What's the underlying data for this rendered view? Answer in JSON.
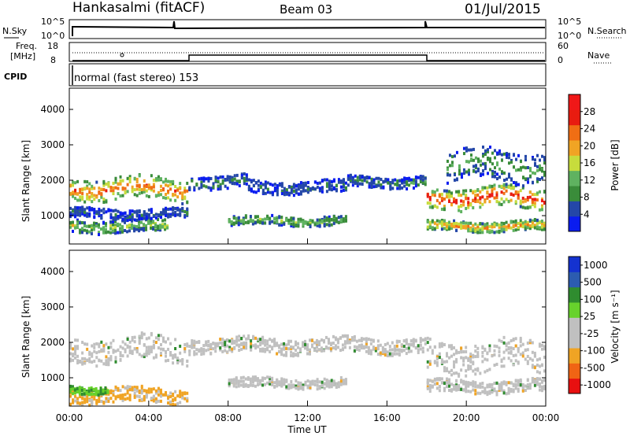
{
  "header": {
    "station": "Hankasalmi (fitACF)",
    "beam": "Beam 03",
    "date": "01/Jul/2015"
  },
  "strip_nsky": {
    "left_label": "N.Sky",
    "left_ticks": [
      "10^5",
      "10^0"
    ],
    "right_ticks": [
      "10^5",
      "10^0"
    ],
    "right_label": "N.Search"
  },
  "strip_freq": {
    "left_label_1": "Freq.",
    "left_label_2": "[MHz]",
    "left_ticks": [
      "18",
      "8"
    ],
    "right_ticks": [
      "60",
      "0"
    ],
    "right_label": "Nave"
  },
  "cpid": {
    "label": "CPID",
    "text": "normal (fast stereo) 153"
  },
  "colors": {
    "power_scale": [
      "#0a1cf0",
      "#2447a8",
      "#3a8c3a",
      "#5fb260",
      "#c7dc3c",
      "#f0a424",
      "#f06e14",
      "#e81c10",
      "#f01818"
    ],
    "velocity_scale": [
      "#e81010",
      "#f06414",
      "#f0a424",
      "#c0c0c0",
      "#c0c0c0",
      "#67d22c",
      "#2f8c2f",
      "#2c5cb0",
      "#1432d0"
    ]
  },
  "chart_data": [
    {
      "type": "heatmap",
      "panel": "power",
      "ylabel": "Slant Range [km]",
      "ylim": [
        200,
        4600
      ],
      "yticks": [
        "1000",
        "2000",
        "3000",
        "4000"
      ],
      "xlim": [
        0,
        24
      ],
      "colorbar_label": "Power [dB]",
      "colorbar_ticks": [
        "4",
        "8",
        "12",
        "16",
        "20",
        "24",
        "28"
      ],
      "colorbar_range": [
        0,
        32
      ],
      "bands": [
        {
          "from": 0,
          "to": 6,
          "center": 1750,
          "width": 450,
          "level": 22
        },
        {
          "from": 6,
          "to": 9,
          "center": 1950,
          "width": 260,
          "level": 8
        },
        {
          "from": 9,
          "to": 14,
          "center": 1800,
          "width": 250,
          "level": 6
        },
        {
          "from": 14,
          "to": 18,
          "center": 1950,
          "width": 220,
          "level": 8
        },
        {
          "from": 18,
          "to": 24,
          "center": 1500,
          "width": 420,
          "level": 25
        },
        {
          "from": 19,
          "to": 24,
          "center": 2400,
          "width": 600,
          "level": 10
        },
        {
          "from": 8,
          "to": 14,
          "center": 850,
          "width": 180,
          "level": 12
        },
        {
          "from": 18,
          "to": 24,
          "center": 700,
          "width": 200,
          "level": 20
        },
        {
          "from": 0,
          "to": 5,
          "center": 700,
          "width": 250,
          "level": 14
        },
        {
          "from": 0,
          "to": 6,
          "center": 1050,
          "width": 200,
          "level": 6
        }
      ]
    },
    {
      "type": "heatmap",
      "panel": "velocity",
      "ylabel": "Slant Range [km]",
      "ylim": [
        200,
        4600
      ],
      "yticks": [
        "1000",
        "2000",
        "3000",
        "4000"
      ],
      "xlim": [
        0,
        24
      ],
      "xticks": [
        "00:00",
        "04:00",
        "08:00",
        "12:00",
        "16:00",
        "20:00",
        "00:00"
      ],
      "xlabel": "Time UT",
      "colorbar_label": "Velocity [m s⁻¹]",
      "colorbar_ticks": [
        "1000",
        "500",
        "100",
        "25",
        "-25",
        "-100",
        "-500",
        "-1000"
      ],
      "bands": [
        {
          "from": 0,
          "to": 6,
          "center": 1800,
          "width": 500,
          "color": "gray"
        },
        {
          "from": 6,
          "to": 18,
          "center": 1900,
          "width": 300,
          "color": "gray"
        },
        {
          "from": 18,
          "to": 24,
          "center": 1600,
          "width": 600,
          "color": "gray"
        },
        {
          "from": 8,
          "to": 14,
          "center": 850,
          "width": 200,
          "color": "gray"
        },
        {
          "from": 18,
          "to": 24,
          "center": 750,
          "width": 250,
          "color": "gray"
        },
        {
          "from": 0,
          "to": 6,
          "center": 500,
          "width": 300,
          "color": "orange"
        },
        {
          "from": 0,
          "to": 2,
          "center": 650,
          "width": 150,
          "color": "green"
        }
      ]
    }
  ]
}
